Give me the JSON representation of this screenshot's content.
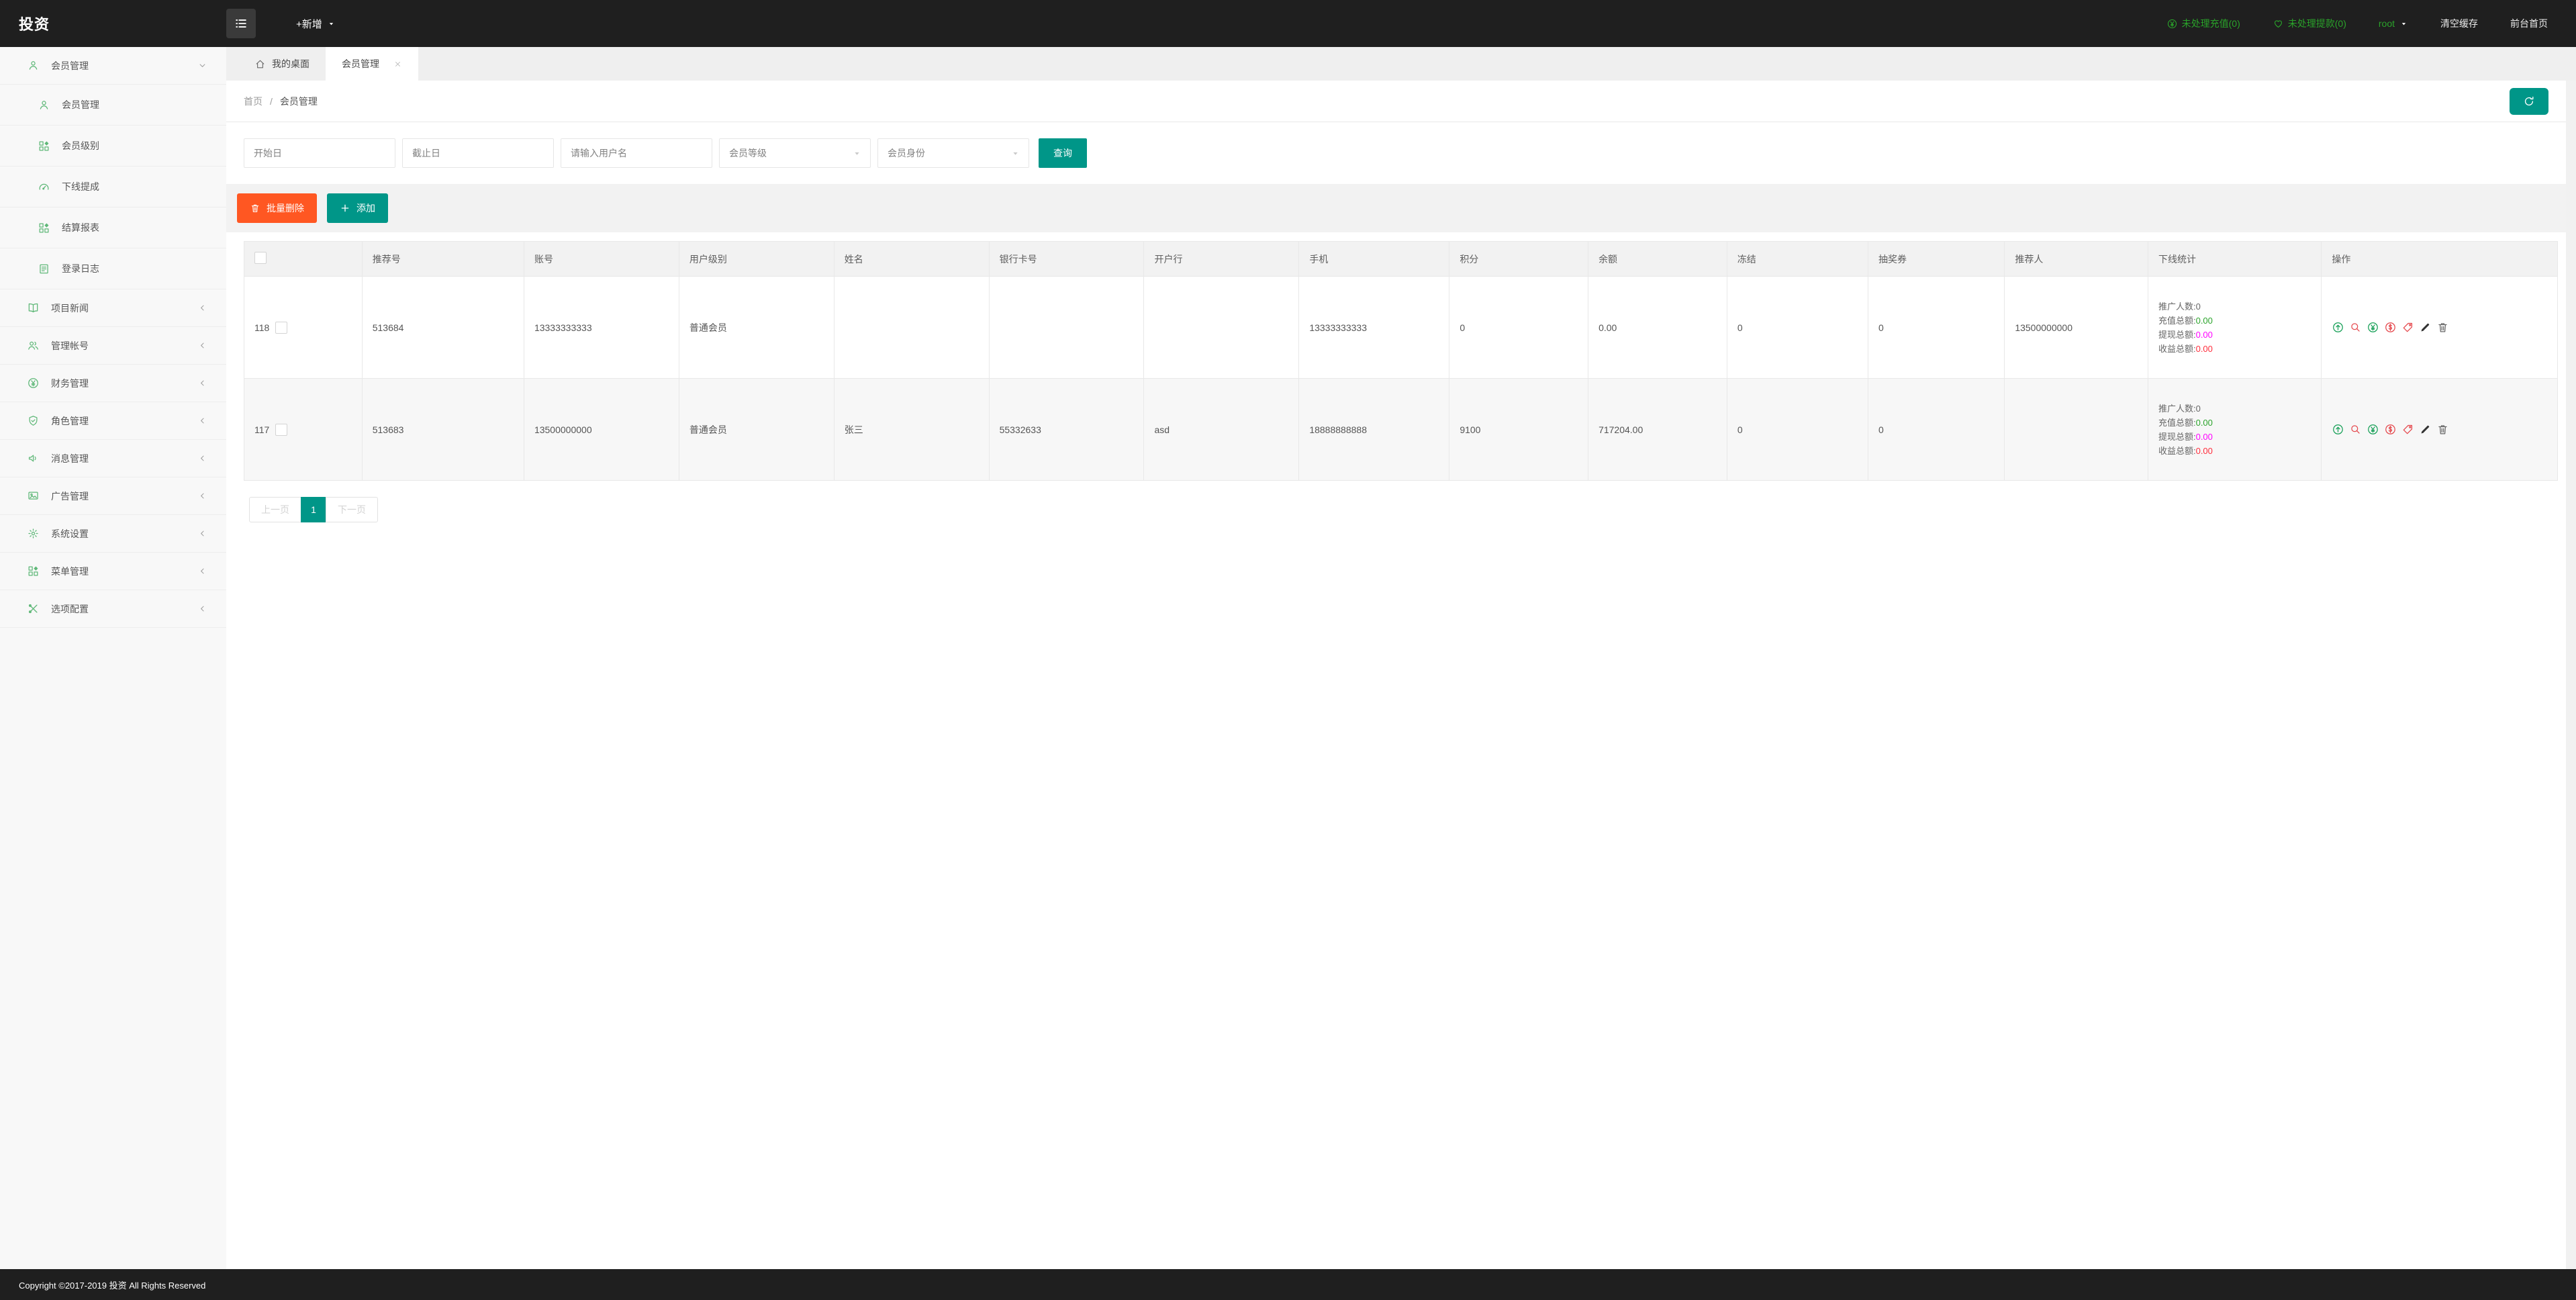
{
  "colors": {
    "teal": "#009688",
    "orange": "#ff5722",
    "green": "#2aa32a",
    "icon_green": "#5FB878",
    "magenta": "#ff00ff",
    "red": "#ff2d3c",
    "header_bg": "#1f1f1f"
  },
  "header": {
    "logo": "投资",
    "new_menu": "+新增",
    "pending_recharge": "未处理充值(0)",
    "pending_withdraw": "未处理提款(0)",
    "username": "root",
    "clear_cache": "清空缓存",
    "front_home": "前台首页"
  },
  "tabs": [
    {
      "label": "我的桌面",
      "icon": "home",
      "active": false
    },
    {
      "label": "会员管理",
      "active": true,
      "closable": true
    }
  ],
  "sidebar": {
    "items": [
      {
        "label": "会员管理",
        "icon": "user",
        "state": "expanded",
        "children": [
          {
            "label": "会员管理",
            "icon": "user"
          },
          {
            "label": "会员级别",
            "icon": "grid"
          },
          {
            "label": "下线提成",
            "icon": "gauge"
          },
          {
            "label": "结算报表",
            "icon": "grid"
          },
          {
            "label": "登录日志",
            "icon": "doc"
          }
        ]
      },
      {
        "label": "项目新闻",
        "icon": "book",
        "state": "collapsed"
      },
      {
        "label": "管理帐号",
        "icon": "users",
        "state": "collapsed"
      },
      {
        "label": "财务管理",
        "icon": "yen-circle",
        "state": "collapsed"
      },
      {
        "label": "角色管理",
        "icon": "shield",
        "state": "collapsed"
      },
      {
        "label": "消息管理",
        "icon": "speaker",
        "state": "collapsed"
      },
      {
        "label": "广告管理",
        "icon": "image",
        "state": "collapsed"
      },
      {
        "label": "系统设置",
        "icon": "gear",
        "state": "collapsed"
      },
      {
        "label": "菜单管理",
        "icon": "grid",
        "state": "collapsed"
      },
      {
        "label": "选项配置",
        "icon": "tools",
        "state": "collapsed"
      }
    ]
  },
  "breadcrumb": {
    "home": "首页",
    "separator": "/",
    "current": "会员管理"
  },
  "filters": {
    "start_date_placeholder": "开始日",
    "end_date_placeholder": "截止日",
    "username_placeholder": "请输入用户名",
    "level_select": "会员等级",
    "identity_select": "会员身份",
    "search_label": "查询"
  },
  "toolbar": {
    "batch_delete": "批量删除",
    "add": "添加"
  },
  "table": {
    "headers": [
      "推荐号",
      "账号",
      "用户级别",
      "姓名",
      "银行卡号",
      "开户行",
      "手机",
      "积分",
      "余额",
      "冻结",
      "抽奖券",
      "推荐人",
      "下线统计",
      "操作"
    ],
    "stats_labels": {
      "promo": "推广人数:",
      "recharge": "充值总额:",
      "withdraw": "提现总额:",
      "income": "收益总额:"
    },
    "action_icons": [
      {
        "name": "promote",
        "icon": "circle-up",
        "color": "green"
      },
      {
        "name": "view",
        "icon": "magnifier",
        "color": "red"
      },
      {
        "name": "recharge",
        "icon": "yen-circle",
        "color": "green"
      },
      {
        "name": "deduct",
        "icon": "dollar-circle",
        "color": "red"
      },
      {
        "name": "tag",
        "icon": "tag",
        "color": "red"
      },
      {
        "name": "edit",
        "icon": "pencil",
        "color": "dark"
      },
      {
        "name": "delete",
        "icon": "trash",
        "color": "gray"
      }
    ],
    "rows": [
      {
        "id": "118",
        "referral_no": "513684",
        "account": "13333333333",
        "level": "普通会员",
        "name": "",
        "bank_card": "",
        "bank": "",
        "phone": "13333333333",
        "points": "0",
        "balance": "0.00",
        "frozen": "0",
        "lottery": "0",
        "referrer": "13500000000",
        "stats": {
          "promo": "0",
          "recharge": "0.00",
          "withdraw": "0.00",
          "income": "0.00"
        }
      },
      {
        "id": "117",
        "referral_no": "513683",
        "account": "13500000000",
        "level": "普通会员",
        "name": "张三",
        "bank_card": "55332633",
        "bank": "asd",
        "phone": "18888888888",
        "points": "9100",
        "balance": "717204.00",
        "frozen": "0",
        "lottery": "0",
        "referrer": "",
        "stats": {
          "promo": "0",
          "recharge": "0.00",
          "withdraw": "0.00",
          "income": "0.00"
        }
      }
    ]
  },
  "pagination": {
    "prev": "上一页",
    "page": "1",
    "next": "下一页"
  },
  "footer": {
    "copyright": "Copyright ©2017-2019 投资 All Rights Reserved"
  }
}
